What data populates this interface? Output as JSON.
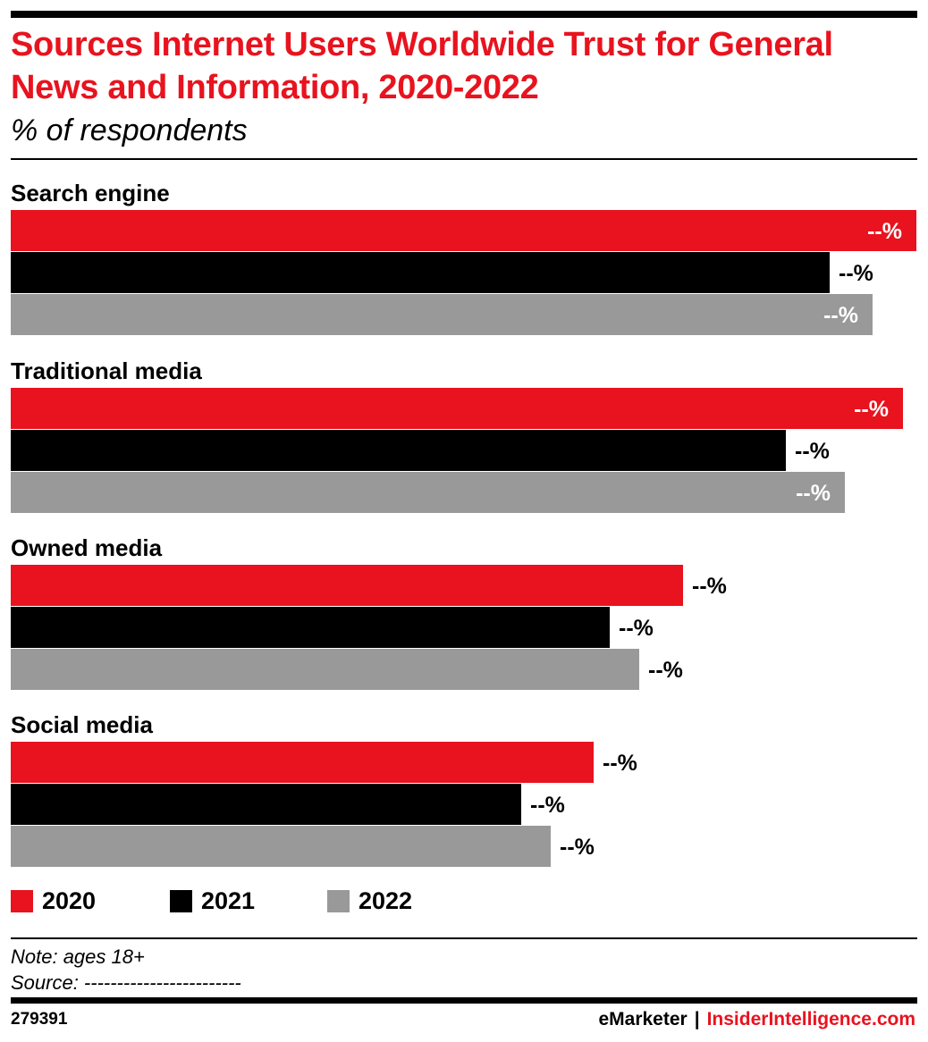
{
  "header": {
    "title": "Sources Internet Users Worldwide Trust for General News and Information, 2020-2022",
    "subtitle": "% of respondents"
  },
  "colors": {
    "2020": "#e8131e",
    "2021": "#000000",
    "2022": "#999999"
  },
  "chart_data": {
    "type": "bar",
    "orientation": "horizontal",
    "categories": [
      "Search engine",
      "Traditional media",
      "Owned media",
      "Social media"
    ],
    "series": [
      {
        "name": "2020",
        "values": [
          100,
          98.5,
          74.2,
          64.4
        ],
        "labels": [
          "--%",
          "--%",
          "--%",
          "--%"
        ]
      },
      {
        "name": "2021",
        "values": [
          90.4,
          85.6,
          66.1,
          56.4
        ],
        "labels": [
          "--%",
          "--%",
          "--%",
          "--%"
        ]
      },
      {
        "name": "2022",
        "values": [
          95.2,
          92.1,
          69.4,
          59.6
        ],
        "labels": [
          "--%",
          "--%",
          "--%",
          "--%"
        ]
      }
    ],
    "value_axis": {
      "min": 0,
      "max": 100,
      "visible": false
    },
    "grid": false,
    "legend": "bottom-left",
    "data_label_format": "--%"
  },
  "legend": {
    "items": [
      "2020",
      "2021",
      "2022"
    ]
  },
  "footer": {
    "note": "Note: ages 18+",
    "source": "Source: ------------------------",
    "chart_id": "279391",
    "brand_emarketer": "eMarketer",
    "brand_separator": "|",
    "brand_insider": "InsiderIntelligence.com"
  }
}
